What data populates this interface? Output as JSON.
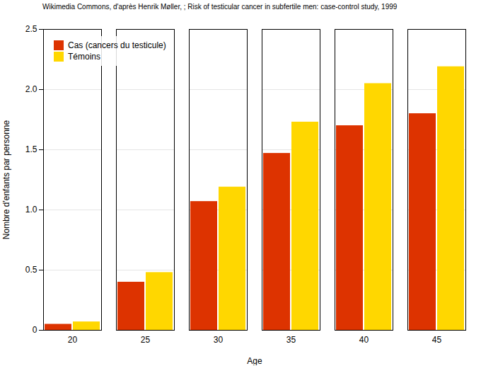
{
  "chart_data": {
    "type": "bar",
    "annotations": [
      "Wikimedia Commons, d'après Henrik Møller, ; Risk of testicular cancer in subfertile men: case-control study, 1999"
    ],
    "xlabel": "Age",
    "ylabel": "Nombre d'enfants par personne",
    "categories": [
      20,
      25,
      30,
      35,
      40,
      45
    ],
    "series": [
      {
        "name": "Cas (cancers du testicule)",
        "color": "#DD3300",
        "values": [
          0.05,
          0.4,
          1.07,
          1.47,
          1.7,
          1.8
        ]
      },
      {
        "name": "Témoins",
        "color": "#FFD700",
        "values": [
          0.07,
          0.48,
          1.19,
          1.73,
          2.05,
          2.19
        ]
      }
    ],
    "ylim": [
      0,
      2.5
    ],
    "yticks": [
      0,
      0.5,
      {
        "value": 1,
        "label": "1.0"
      },
      1.5,
      {
        "value": 2,
        "label": "2.0"
      },
      2.5
    ],
    "grid": true,
    "legend": "upper left"
  }
}
